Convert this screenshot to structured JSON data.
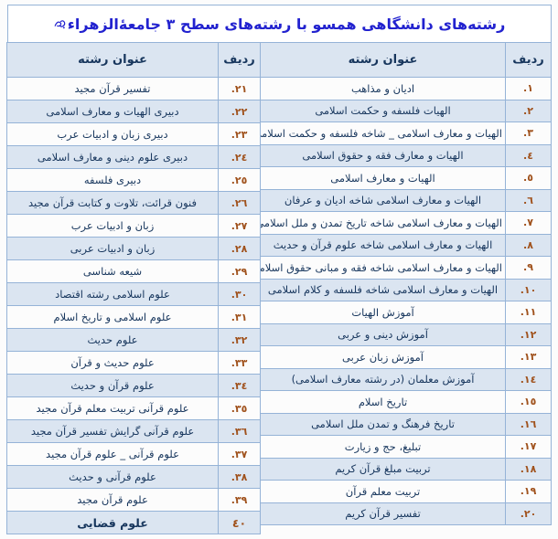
{
  "title": {
    "text": "رشته‌های دانشگاهی همسو با رشته‌های سطح ٣ جامعۀالزهراء",
    "honorific_icon": "salam-allah-alayha-honorific"
  },
  "colors": {
    "accent_border": "#95b3d7",
    "band_fill": "#dbe5f1",
    "title_color": "#2222cf",
    "text_color": "#17365d",
    "number_color": "#a0521d"
  },
  "right_table": {
    "headers": {
      "row_no": "ردیف",
      "field_title": "عنوان رشته"
    },
    "rows": [
      {
        "no": "١.",
        "title": "ادیان و مذاهب"
      },
      {
        "no": "٢.",
        "title": "الهیات فلسفه و حکمت اسلامی"
      },
      {
        "no": "٣.",
        "title": "الهیات و معارف اسلامی _ شاخه فلسفه و حکمت اسلامی"
      },
      {
        "no": "٤.",
        "title": "الهیات و معارف فقه و حقوق اسلامی"
      },
      {
        "no": "٥.",
        "title": "الهیات و معارف اسلامی"
      },
      {
        "no": "٦.",
        "title": "الهیات و معارف اسلامی شاخه ادیان و عرفان"
      },
      {
        "no": "٧.",
        "title": "الهیات و معارف اسلامی شاخه تاریخ تمدن و ملل اسلامی"
      },
      {
        "no": "٨.",
        "title": "الهیات و معارف اسلامی شاخه علوم قرآن و حدیث"
      },
      {
        "no": "٩.",
        "title": "الهیات و معارف اسلامی شاخه فقه و مبانی حقوق اسلامی"
      },
      {
        "no": "١٠.",
        "title": "الهیات و معارف اسلامی شاخه فلسفه و کلام اسلامی"
      },
      {
        "no": "١١.",
        "title": "آموزش الهیات"
      },
      {
        "no": "١٢.",
        "title": "آموزش دینی و عربی"
      },
      {
        "no": "١٣.",
        "title": "آموزش زبان عربی"
      },
      {
        "no": "١٤.",
        "title": "آموزش معلمان (در رشته معارف اسلامی)"
      },
      {
        "no": "١٥.",
        "title": "تاریخ اسلام"
      },
      {
        "no": "١٦.",
        "title": "تاریخ فرهنگ و تمدن ملل اسلامی"
      },
      {
        "no": "١٧.",
        "title": "تبلیغ، حج و زیارت"
      },
      {
        "no": "١٨.",
        "title": "تربیت مبلغ قرآن کریم"
      },
      {
        "no": "١٩.",
        "title": "تربیت معلم قرآن"
      },
      {
        "no": "٢٠.",
        "title": "تفسیر قرآن کریم"
      }
    ]
  },
  "left_table": {
    "headers": {
      "row_no": "ردیف",
      "field_title": "عنوان رشته"
    },
    "rows": [
      {
        "no": "٢١.",
        "title": "تفسیر قرآن مجید"
      },
      {
        "no": "٢٢.",
        "title": "دبیری الهیات و معارف اسلامی"
      },
      {
        "no": "٢٣.",
        "title": "دبیری زبان و ادبیات عرب"
      },
      {
        "no": "٢٤.",
        "title": "دبیری علوم دینی و معارف اسلامی"
      },
      {
        "no": "٢٥.",
        "title": "دبیری فلسفه"
      },
      {
        "no": "٢٦.",
        "title": "فنون قرائت، تلاوت و کتابت قرآن مجید"
      },
      {
        "no": "٢٧.",
        "title": "زبان و ادبیات عرب"
      },
      {
        "no": "٢٨.",
        "title": "زبان و ادبیات عربی"
      },
      {
        "no": "٢٩.",
        "title": "شیعه شناسی"
      },
      {
        "no": "٣٠.",
        "title": "علوم اسلامی رشته اقتصاد"
      },
      {
        "no": "٣١.",
        "title": "علوم اسلامی و تاریخ اسلام"
      },
      {
        "no": "٣٢.",
        "title": "علوم حدیث"
      },
      {
        "no": "٣٣.",
        "title": "علوم حدیث و قرآن"
      },
      {
        "no": "٣٤.",
        "title": "علوم قرآن و حدیث"
      },
      {
        "no": "٣٥.",
        "title": "علوم قرآنی تربیت معلم قرآن مجید"
      },
      {
        "no": "٣٦.",
        "title": "علوم قرآنی گرایش تفسیر قرآن مجید"
      },
      {
        "no": "٣٧.",
        "title": "علوم قرآنی _ علوم قرآن مجید"
      },
      {
        "no": "٣٨.",
        "title": "علوم قرآنی و حدیث"
      },
      {
        "no": "٣٩.",
        "title": "علوم قرآن مجید"
      },
      {
        "no": "٤٠",
        "title": "علوم قضایی",
        "bold": true
      }
    ]
  }
}
